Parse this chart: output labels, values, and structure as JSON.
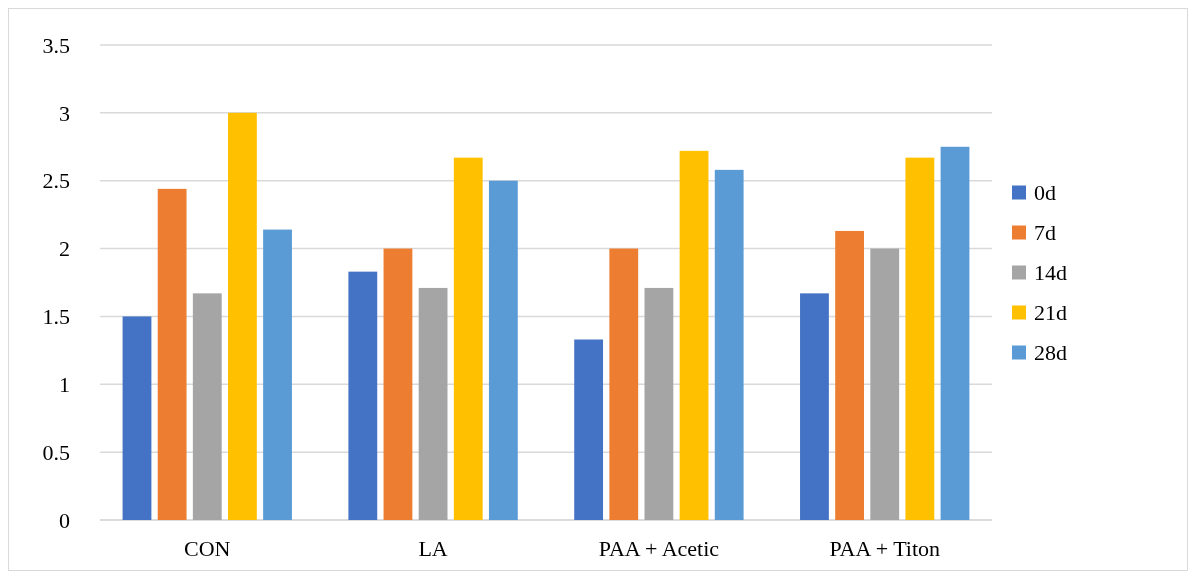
{
  "chart_data": {
    "type": "bar",
    "categories": [
      "CON",
      "LA",
      "PAA + Acetic",
      "PAA + Titon"
    ],
    "series": [
      {
        "name": "0d",
        "color": "#4472c4",
        "values": [
          1.5,
          1.83,
          1.33,
          1.67
        ]
      },
      {
        "name": "7d",
        "color": "#ed7d31",
        "values": [
          2.44,
          2.0,
          2.0,
          2.13
        ]
      },
      {
        "name": "14d",
        "color": "#a5a5a5",
        "values": [
          1.67,
          1.71,
          1.71,
          2.0
        ]
      },
      {
        "name": "21d",
        "color": "#ffc000",
        "values": [
          3.0,
          2.67,
          2.72,
          2.67
        ]
      },
      {
        "name": "28d",
        "color": "#5b9bd5",
        "values": [
          2.14,
          2.5,
          2.58,
          2.75
        ]
      }
    ],
    "ylim": [
      0,
      3.5
    ],
    "yticks": [
      0,
      0.5,
      1,
      1.5,
      2,
      2.5,
      3,
      3.5
    ],
    "grid": "y",
    "legend": "right"
  }
}
